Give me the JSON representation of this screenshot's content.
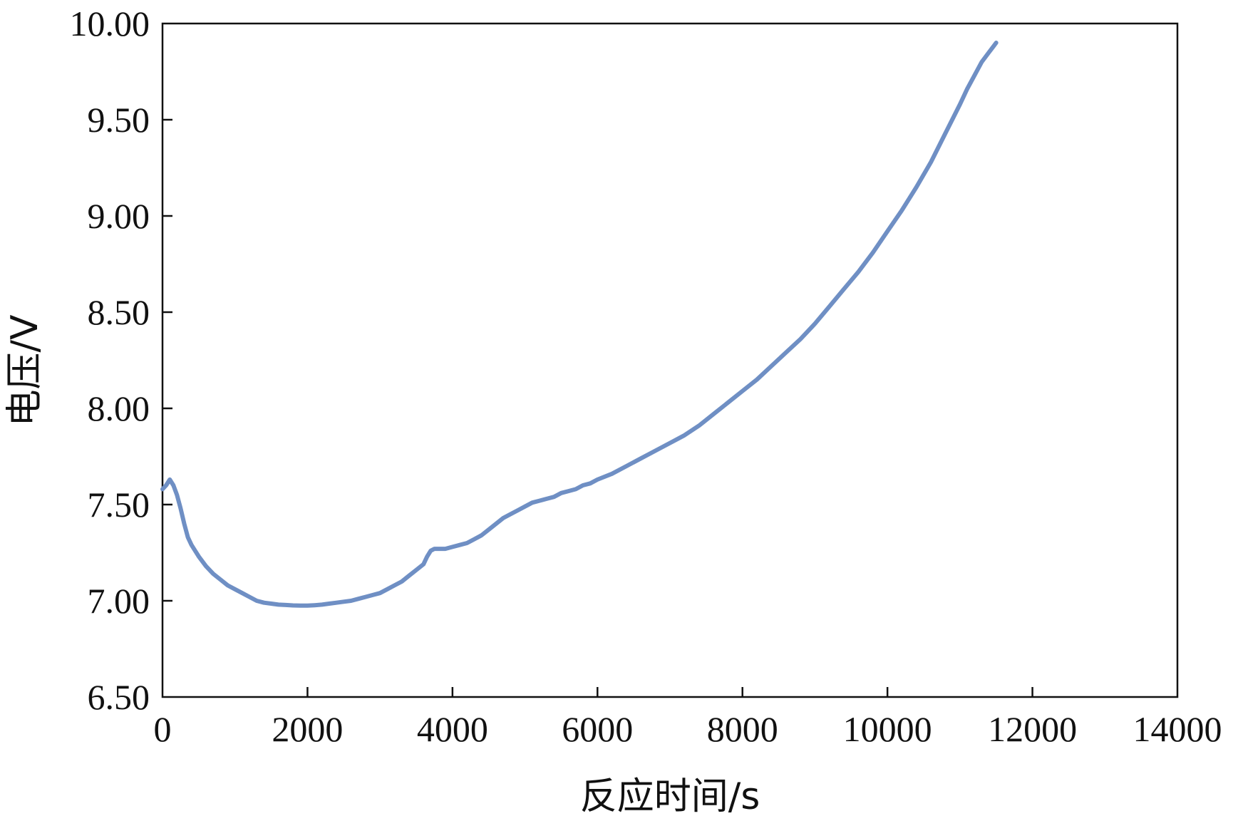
{
  "chart_data": {
    "type": "line",
    "xlabel": "反应时间/s",
    "ylabel": "电压/V",
    "xlim": [
      0,
      14000
    ],
    "ylim": [
      6.5,
      10.0
    ],
    "x_ticks": [
      "0",
      "2000",
      "4000",
      "6000",
      "8000",
      "10000",
      "12000",
      "14000"
    ],
    "y_ticks": [
      "6.50",
      "7.00",
      "7.50",
      "8.00",
      "8.50",
      "9.00",
      "9.50",
      "10.00"
    ],
    "grid": false,
    "legend": "none",
    "series": [
      {
        "color": "#6f8fc4",
        "x": [
          0,
          50,
          100,
          150,
          200,
          250,
          300,
          350,
          400,
          450,
          500,
          600,
          700,
          800,
          900,
          1000,
          1100,
          1200,
          1300,
          1400,
          1500,
          1600,
          1700,
          1800,
          1900,
          2000,
          2100,
          2200,
          2300,
          2400,
          2500,
          2600,
          2700,
          2800,
          2900,
          3000,
          3100,
          3200,
          3300,
          3400,
          3500,
          3600,
          3650,
          3700,
          3750,
          3800,
          3900,
          4000,
          4100,
          4200,
          4300,
          4400,
          4500,
          4600,
          4700,
          4800,
          4900,
          5000,
          5100,
          5200,
          5300,
          5400,
          5500,
          5600,
          5700,
          5800,
          5900,
          6000,
          6200,
          6400,
          6600,
          6800,
          7000,
          7200,
          7400,
          7600,
          7800,
          8000,
          8200,
          8400,
          8600,
          8800,
          9000,
          9200,
          9400,
          9600,
          9800,
          10000,
          10200,
          10400,
          10600,
          10800,
          11000,
          11100,
          11200,
          11300,
          11400,
          11500
        ],
        "y": [
          7.58,
          7.6,
          7.63,
          7.6,
          7.55,
          7.48,
          7.4,
          7.33,
          7.29,
          7.26,
          7.23,
          7.18,
          7.14,
          7.11,
          7.08,
          7.06,
          7.04,
          7.02,
          7.0,
          6.99,
          6.985,
          6.98,
          6.978,
          6.976,
          6.975,
          6.975,
          6.977,
          6.98,
          6.985,
          6.99,
          6.995,
          7.0,
          7.01,
          7.02,
          7.03,
          7.04,
          7.06,
          7.08,
          7.1,
          7.13,
          7.16,
          7.19,
          7.23,
          7.26,
          7.27,
          7.27,
          7.27,
          7.28,
          7.29,
          7.3,
          7.32,
          7.34,
          7.37,
          7.4,
          7.43,
          7.45,
          7.47,
          7.49,
          7.51,
          7.52,
          7.53,
          7.54,
          7.56,
          7.57,
          7.58,
          7.6,
          7.61,
          7.63,
          7.66,
          7.7,
          7.74,
          7.78,
          7.82,
          7.86,
          7.91,
          7.97,
          8.03,
          8.09,
          8.15,
          8.22,
          8.29,
          8.36,
          8.44,
          8.53,
          8.62,
          8.71,
          8.81,
          8.92,
          9.03,
          9.15,
          9.28,
          9.43,
          9.58,
          9.66,
          9.73,
          9.8,
          9.85,
          9.9
        ]
      }
    ]
  }
}
